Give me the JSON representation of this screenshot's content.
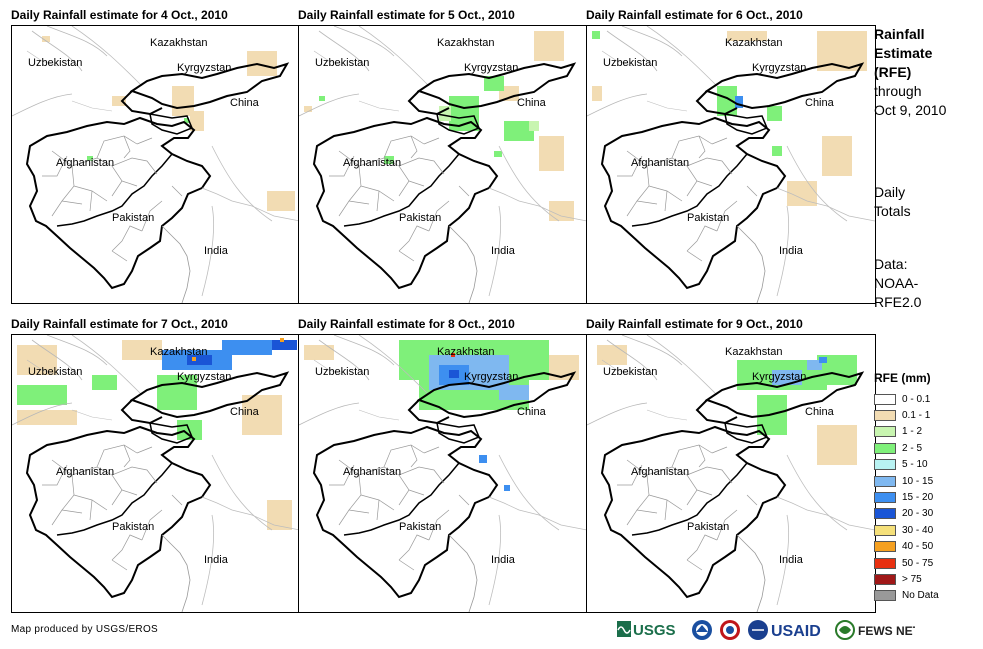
{
  "panels": [
    {
      "title": "Daily Rainfall estimate for 4 Oct., 2010"
    },
    {
      "title": "Daily Rainfall estimate for 5 Oct., 2010"
    },
    {
      "title": "Daily Rainfall estimate for 6 Oct., 2010"
    },
    {
      "title": "Daily Rainfall estimate for 7 Oct., 2010"
    },
    {
      "title": "Daily Rainfall estimate for 8 Oct., 2010"
    },
    {
      "title": "Daily Rainfall estimate for 9 Oct., 2010"
    }
  ],
  "map_labels": {
    "kazakhstan": "Kazakhstan",
    "uzbekistan": "Uzbekistan",
    "kyrgyzstan": "Kyrgyzstan",
    "china": "China",
    "afghanistan": "Afghanistan",
    "pakistan": "Pakistan",
    "india": "India"
  },
  "sidebar": {
    "title_lines": [
      "Rainfall",
      "Estimate",
      "(RFE)"
    ],
    "through_lines": [
      "through",
      "Oct 9, 2010"
    ],
    "totals_lines": [
      "Daily",
      "Totals"
    ],
    "data_lines": [
      "Data:",
      "NOAA-",
      "RFE2.0"
    ]
  },
  "legend": {
    "title": "RFE (mm)",
    "items": [
      {
        "label": "0 - 0.1",
        "color": "#ffffff"
      },
      {
        "label": "0.1 - 1",
        "color": "#f2dcb3"
      },
      {
        "label": "1 - 2",
        "color": "#c8f5b0"
      },
      {
        "label": "2 - 5",
        "color": "#7ff07a"
      },
      {
        "label": "5 - 10",
        "color": "#b8f2f2"
      },
      {
        "label": "10 - 15",
        "color": "#7fb8f0"
      },
      {
        "label": "15 - 20",
        "color": "#3d8ff0"
      },
      {
        "label": "20 - 30",
        "color": "#1a55d6"
      },
      {
        "label": "30 - 40",
        "color": "#f5e07a"
      },
      {
        "label": "40 - 50",
        "color": "#f5a020"
      },
      {
        "label": "50 - 75",
        "color": "#e83010"
      },
      {
        "label": "> 75",
        "color": "#a01818"
      },
      {
        "label": "No Data",
        "color": "#999999"
      }
    ]
  },
  "footer": {
    "credit": "Map produced by USGS/EROS",
    "logos": {
      "usgs": "USGS",
      "usaid": "USAID",
      "fewsnet": "FEWS NET"
    }
  },
  "colors": {
    "border": "#000000",
    "province": "#9a9a9a",
    "river": "#b0b0b0"
  }
}
